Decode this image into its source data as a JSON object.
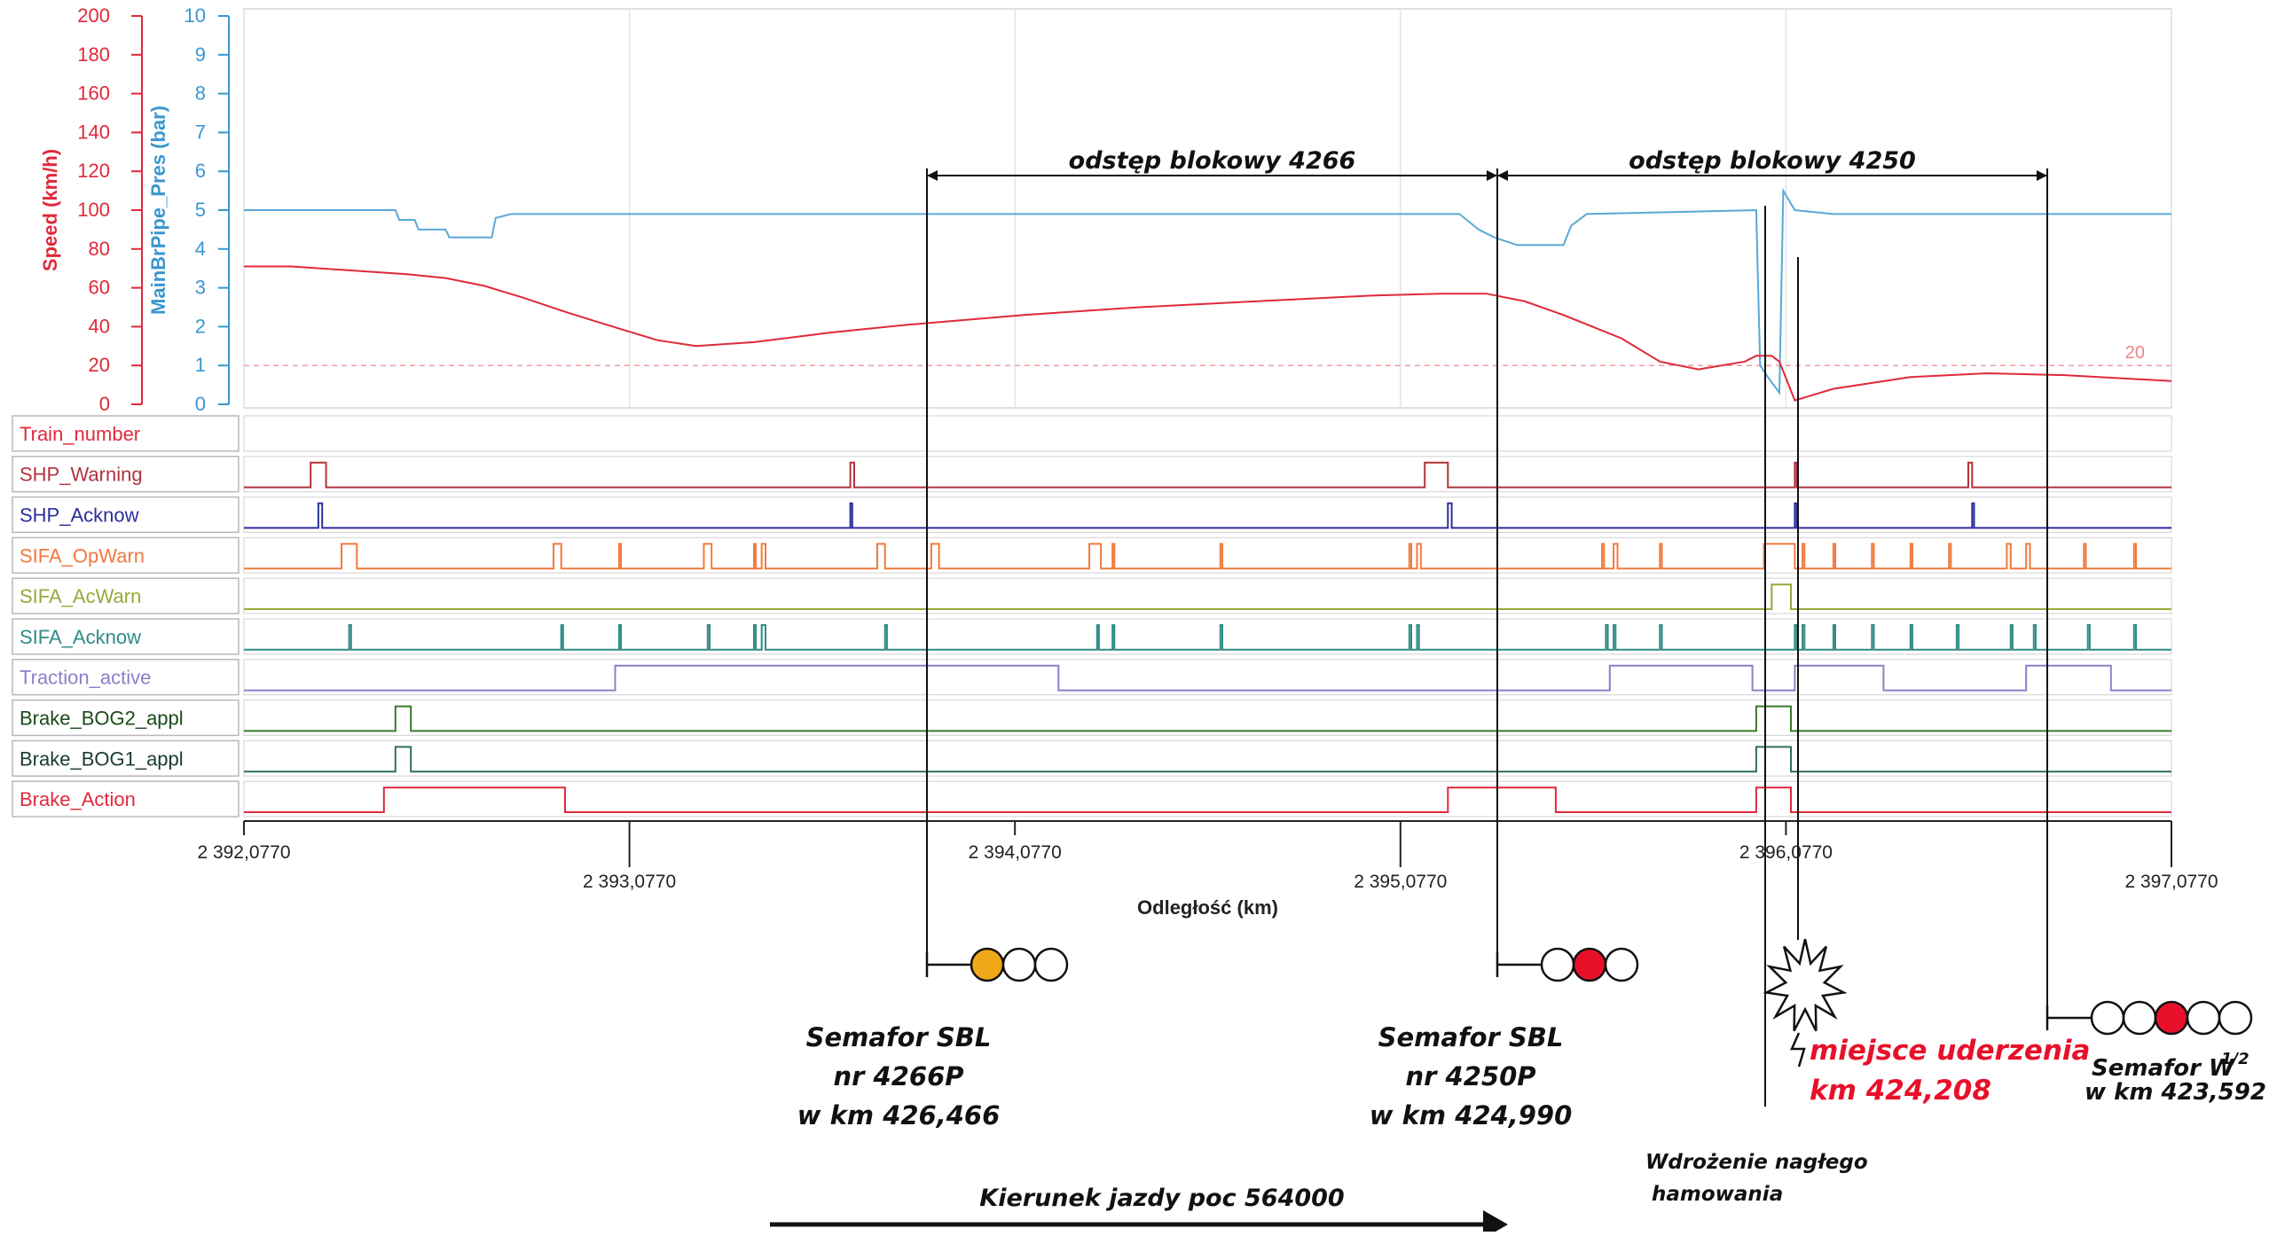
{
  "chart_data": {
    "type": "line",
    "xlabel": "Odległość (km)",
    "x_range": [
      2392.077,
      2397.077
    ],
    "x_ticks_upper": [
      "2 392,0770",
      "2 394,0770",
      "2 396,0770"
    ],
    "x_ticks_lower": [
      "2 393,0770",
      "2 395,0770",
      "2 397,0770"
    ],
    "speed_axis": {
      "label": "Speed (km/h)",
      "range": [
        0,
        200
      ],
      "ticks": [
        "0",
        "20",
        "40",
        "60",
        "80",
        "100",
        "120",
        "140",
        "160",
        "180",
        "200"
      ],
      "color": "#e0293a"
    },
    "pressure_axis": {
      "label": "MainBrPipe_Pres (bar)",
      "range": [
        0,
        10
      ],
      "ticks": [
        "0",
        "1",
        "2",
        "3",
        "4",
        "5",
        "6",
        "7",
        "8",
        "9",
        "10"
      ],
      "color": "#3a96d0"
    },
    "reference_line": {
      "value": 20,
      "label": "20"
    },
    "series": [
      {
        "name": "Speed (km/h)",
        "color": "#e0293a",
        "x": [
          2392.077,
          2392.2,
          2392.35,
          2392.5,
          2392.6,
          2392.7,
          2392.8,
          2392.92,
          2393.05,
          2393.15,
          2393.25,
          2393.4,
          2393.6,
          2393.8,
          2394.1,
          2394.4,
          2394.7,
          2395.0,
          2395.18,
          2395.3,
          2395.4,
          2395.5,
          2395.65,
          2395.75,
          2395.85,
          2395.97,
          2396.0,
          2396.04,
          2396.06,
          2396.1,
          2396.2,
          2396.4,
          2396.6,
          2396.8,
          2397.077
        ],
        "values": [
          71,
          71,
          69,
          67,
          65,
          61,
          55,
          47,
          39,
          33,
          30,
          32,
          37,
          41,
          46,
          50,
          53,
          56,
          57,
          57,
          53,
          46,
          34,
          22,
          18,
          22,
          25,
          25,
          22,
          2,
          8,
          14,
          16,
          15,
          12
        ]
      },
      {
        "name": "MainBrPipe_Pres (bar)",
        "color": "#5aa9d6",
        "x": [
          2392.077,
          2392.47,
          2392.48,
          2392.52,
          2392.53,
          2392.6,
          2392.61,
          2392.72,
          2392.73,
          2392.77,
          2392.78,
          2395.23,
          2395.28,
          2395.32,
          2395.38,
          2395.5,
          2395.52,
          2395.56,
          2396.0,
          2396.01,
          2396.03,
          2396.06,
          2396.07,
          2396.1,
          2396.2,
          2397.077
        ],
        "values": [
          5,
          5,
          4.75,
          4.75,
          4.5,
          4.5,
          4.3,
          4.3,
          4.8,
          4.9,
          4.9,
          4.9,
          4.5,
          4.3,
          4.1,
          4.1,
          4.6,
          4.9,
          5,
          1,
          0.7,
          0.3,
          5.5,
          5,
          4.9,
          4.9
        ]
      }
    ],
    "digital_signals": [
      {
        "name": "Train_number",
        "color": "#e0293a",
        "label_color": "#e0293a",
        "pulses": []
      },
      {
        "name": "SHP_Warning",
        "color": "#b0333c",
        "label_color": "#b0333c",
        "pulses": [
          [
            2392.25,
            2392.29
          ],
          [
            2393.65,
            2393.66
          ],
          [
            2395.14,
            2395.2
          ],
          [
            2396.1,
            2396.105
          ],
          [
            2396.55,
            2396.56
          ]
        ]
      },
      {
        "name": "SHP_Acknow",
        "color": "#2b2f9a",
        "label_color": "#2b2f9a",
        "pulses": [
          [
            2392.27,
            2392.28
          ],
          [
            2393.65,
            2393.655
          ],
          [
            2395.2,
            2395.21
          ],
          [
            2396.1,
            2396.105
          ],
          [
            2396.56,
            2396.565
          ]
        ]
      },
      {
        "name": "SIFA_OpWarn",
        "color": "#f07a3c",
        "label_color": "#f07a3c",
        "pulses": [
          [
            2392.33,
            2392.37
          ],
          [
            2392.88,
            2392.9
          ],
          [
            2393.05,
            2393.055
          ],
          [
            2393.27,
            2393.29
          ],
          [
            2393.4,
            2393.405
          ],
          [
            2393.42,
            2393.43
          ],
          [
            2393.72,
            2393.74
          ],
          [
            2393.86,
            2393.88
          ],
          [
            2394.27,
            2394.3
          ],
          [
            2394.33,
            2394.335
          ],
          [
            2394.61,
            2394.615
          ],
          [
            2395.1,
            2395.105
          ],
          [
            2395.12,
            2395.13
          ],
          [
            2395.6,
            2395.605
          ],
          [
            2395.63,
            2395.64
          ],
          [
            2395.75,
            2395.755
          ],
          [
            2396.02,
            2396.1
          ],
          [
            2396.12,
            2396.125
          ],
          [
            2396.2,
            2396.205
          ],
          [
            2396.3,
            2396.305
          ],
          [
            2396.4,
            2396.405
          ],
          [
            2396.5,
            2396.505
          ],
          [
            2396.65,
            2396.66
          ],
          [
            2396.7,
            2396.71
          ],
          [
            2396.85,
            2396.855
          ],
          [
            2396.98,
            2396.985
          ]
        ]
      },
      {
        "name": "SIFA_AcWarn",
        "color": "#9aa83a",
        "label_color": "#9aa83a",
        "pulses": [
          [
            2396.04,
            2396.09
          ]
        ]
      },
      {
        "name": "SIFA_Acknow",
        "color": "#2e8b85",
        "label_color": "#2e8b85",
        "pulses": [
          [
            2392.35,
            2392.355
          ],
          [
            2392.9,
            2392.905
          ],
          [
            2393.05,
            2393.055
          ],
          [
            2393.28,
            2393.285
          ],
          [
            2393.4,
            2393.405
          ],
          [
            2393.42,
            2393.43
          ],
          [
            2393.74,
            2393.745
          ],
          [
            2394.29,
            2394.295
          ],
          [
            2394.33,
            2394.335
          ],
          [
            2394.61,
            2394.615
          ],
          [
            2395.1,
            2395.105
          ],
          [
            2395.12,
            2395.125
          ],
          [
            2395.61,
            2395.615
          ],
          [
            2395.63,
            2395.635
          ],
          [
            2395.75,
            2395.755
          ],
          [
            2396.1,
            2396.105
          ],
          [
            2396.12,
            2396.125
          ],
          [
            2396.2,
            2396.205
          ],
          [
            2396.3,
            2396.305
          ],
          [
            2396.4,
            2396.405
          ],
          [
            2396.52,
            2396.525
          ],
          [
            2396.66,
            2396.665
          ],
          [
            2396.72,
            2396.725
          ],
          [
            2396.86,
            2396.865
          ],
          [
            2396.98,
            2396.985
          ]
        ]
      },
      {
        "name": "Traction_active",
        "color": "#8a80c8",
        "label_color": "#8a80c8",
        "pulses": [
          [
            2393.04,
            2394.19
          ],
          [
            2395.62,
            2395.99
          ],
          [
            2396.1,
            2396.33
          ],
          [
            2396.7,
            2396.92
          ]
        ]
      },
      {
        "name": "Brake_BOG2_appl",
        "color": "#3a7a2a",
        "label_color": "#1a4a1a",
        "pulses": [
          [
            2392.47,
            2392.51
          ],
          [
            2396.0,
            2396.09
          ]
        ]
      },
      {
        "name": "Brake_BOG1_appl",
        "color": "#2f6f62",
        "label_color": "#1a3a34",
        "pulses": [
          [
            2392.47,
            2392.51
          ],
          [
            2396.0,
            2396.09
          ]
        ]
      },
      {
        "name": "Brake_Action",
        "color": "#e0293a",
        "label_color": "#e0293a",
        "pulses": [
          [
            2392.44,
            2392.91
          ],
          [
            2395.2,
            2395.48
          ],
          [
            2396.0,
            2396.09
          ]
        ]
      }
    ]
  },
  "annotations": {
    "block_4266": "odstęp blokowy 4266",
    "block_4250": "odstęp blokowy 4250",
    "sig1_l1": "Semafor SBL",
    "sig1_l2": "nr 4266P",
    "sig1_l3": "w km  426,466",
    "sig2_l1": "Semafor SBL",
    "sig2_l2": "nr 4250P",
    "sig2_l3": "w km  424,990",
    "impact_l1": "miejsce uderzenia",
    "impact_l2": "km 424,208",
    "sig3_l1": "Semafor W",
    "sig3_sup": "1/2",
    "sig3_l2": "w km  423,592",
    "brake_l1": "Wdrożenie nagłego",
    "brake_l2": "hamowania",
    "direction": "Kierunek jazdy poc 564000",
    "colors": {
      "impact": "#e8102a",
      "amber": "#f0a818",
      "red": "#e8102a"
    }
  }
}
